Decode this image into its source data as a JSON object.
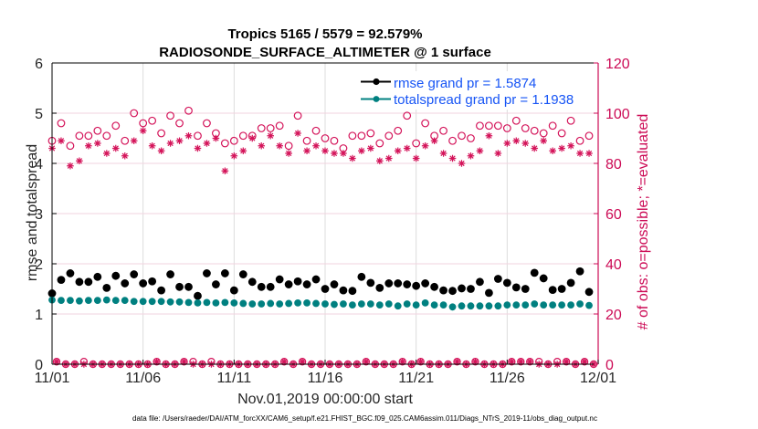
{
  "chart_data": {
    "type": "line",
    "title": "Tropics 5165 / 5579 = 92.579%",
    "subtitle": "RADIOSONDE_SURFACE_ALTIMETER @ 1 surface",
    "xlabel": "Nov.01,2019 00:00:00 start",
    "ylabel": "rmse and totalspread",
    "y2label": "# of obs: o=possible; *=evaluated",
    "xlim_days": [
      0,
      30
    ],
    "ylim": [
      0,
      6
    ],
    "y2lim": [
      0,
      120
    ],
    "grid": true,
    "xticks": [
      {
        "day": 0,
        "label": "11/01"
      },
      {
        "day": 5,
        "label": "11/06"
      },
      {
        "day": 10,
        "label": "11/11"
      },
      {
        "day": 15,
        "label": "11/16"
      },
      {
        "day": 20,
        "label": "11/21"
      },
      {
        "day": 25,
        "label": "11/26"
      },
      {
        "day": 30,
        "label": "12/01"
      }
    ],
    "yticks": [
      0,
      1,
      2,
      3,
      4,
      5,
      6
    ],
    "y2ticks": [
      0,
      20,
      40,
      60,
      80,
      100,
      120
    ],
    "colors": {
      "axis_right": "#cc0a55",
      "counts": "#d4145a",
      "legend_text": "#1654f5",
      "grid_vertical": "#dddddd",
      "grid_horizontal": "#f2d3df"
    },
    "legend": {
      "position": "top-right",
      "entries": [
        {
          "label": "rmse grand pr = 1.5874",
          "color": "#000000"
        },
        {
          "label": "totalspread grand pr = 1.1938",
          "color": "#008080"
        }
      ]
    },
    "x_days": [
      0,
      0.5,
      1,
      1.5,
      2,
      2.5,
      3,
      3.5,
      4,
      4.5,
      5,
      5.5,
      6,
      6.5,
      7,
      7.5,
      8,
      8.5,
      9,
      9.5,
      10,
      10.5,
      11,
      11.5,
      12,
      12.5,
      13,
      13.5,
      14,
      14.5,
      15,
      15.5,
      16,
      16.5,
      17,
      17.5,
      18,
      18.5,
      19,
      19.5,
      20,
      20.5,
      21,
      21.5,
      22,
      22.5,
      23,
      23.5,
      24,
      24.5,
      25,
      25.5,
      26,
      26.5,
      27,
      27.5,
      28,
      28.5,
      29,
      29.5
    ],
    "series": [
      {
        "name": "rmse",
        "axis": "left",
        "marker": "filled-circle",
        "color": "#000000",
        "values": [
          1.41,
          1.68,
          1.81,
          1.64,
          1.64,
          1.74,
          1.52,
          1.76,
          1.61,
          1.79,
          1.61,
          1.65,
          1.47,
          1.79,
          1.54,
          1.54,
          1.36,
          1.81,
          1.59,
          1.81,
          1.47,
          1.79,
          1.64,
          1.54,
          1.54,
          1.69,
          1.59,
          1.65,
          1.59,
          1.69,
          1.5,
          1.59,
          1.47,
          1.46,
          1.74,
          1.62,
          1.52,
          1.61,
          1.61,
          1.59,
          1.56,
          1.61,
          1.54,
          1.47,
          1.46,
          1.51,
          1.5,
          1.64,
          1.42,
          1.7,
          1.62,
          1.53,
          1.5,
          1.82,
          1.71,
          1.48,
          1.5,
          1.62,
          1.85,
          1.44
        ]
      },
      {
        "name": "totalspread",
        "axis": "left",
        "marker": "filled-circle",
        "color": "#008080",
        "values": [
          1.28,
          1.27,
          1.27,
          1.26,
          1.27,
          1.27,
          1.28,
          1.27,
          1.27,
          1.25,
          1.25,
          1.25,
          1.25,
          1.24,
          1.24,
          1.23,
          1.22,
          1.23,
          1.22,
          1.23,
          1.22,
          1.21,
          1.2,
          1.2,
          1.21,
          1.2,
          1.21,
          1.22,
          1.22,
          1.21,
          1.2,
          1.19,
          1.2,
          1.18,
          1.2,
          1.2,
          1.18,
          1.2,
          1.16,
          1.2,
          1.18,
          1.22,
          1.18,
          1.18,
          1.14,
          1.16,
          1.16,
          1.16,
          1.16,
          1.16,
          1.18,
          1.18,
          1.18,
          1.2,
          1.18,
          1.18,
          1.18,
          1.18,
          1.2,
          1.17
        ]
      },
      {
        "name": "obs possible",
        "axis": "right",
        "marker": "open-circle",
        "color": "#d4145a",
        "values": [
          89,
          96,
          87,
          91,
          91,
          93,
          91,
          95,
          89,
          100,
          96,
          97,
          92,
          99,
          96,
          101,
          91,
          96,
          92,
          88,
          89,
          91,
          91,
          94,
          94,
          95,
          87,
          99,
          89,
          93,
          90,
          89,
          86,
          91,
          91,
          92,
          88,
          91,
          93,
          99,
          88,
          96,
          91,
          93,
          89,
          91,
          90,
          95,
          95,
          95,
          94,
          97,
          94,
          93,
          92,
          95,
          92,
          97,
          89,
          91
        ]
      },
      {
        "name": "obs evaluated",
        "axis": "right",
        "marker": "asterisk",
        "color": "#d4145a",
        "values": [
          86,
          89,
          79,
          81,
          87,
          88,
          84,
          86,
          83,
          89,
          93,
          87,
          85,
          88,
          89,
          91,
          86,
          88,
          90,
          77,
          83,
          85,
          90,
          87,
          91,
          87,
          84,
          92,
          85,
          87,
          85,
          84,
          84,
          82,
          85,
          86,
          81,
          82,
          85,
          86,
          82,
          87,
          89,
          84,
          82,
          80,
          83,
          85,
          91,
          84,
          88,
          89,
          88,
          86,
          89,
          85,
          86,
          87,
          84,
          84
        ]
      }
    ],
    "lower_counts": {
      "x_days": [
        0.25,
        0.75,
        1.25,
        1.75,
        2.25,
        2.75,
        3.25,
        3.75,
        4.25,
        4.75,
        5.25,
        5.75,
        6.25,
        6.75,
        7.25,
        7.75,
        8.25,
        8.75,
        9.25,
        9.75,
        10.25,
        10.75,
        11.25,
        11.75,
        12.25,
        12.75,
        13.25,
        13.75,
        14.25,
        14.75,
        15.25,
        15.75,
        16.25,
        16.75,
        17.25,
        17.75,
        18.25,
        18.75,
        19.25,
        19.75,
        20.25,
        20.75,
        21.25,
        21.75,
        22.25,
        22.75,
        23.25,
        23.75,
        24.25,
        24.75,
        25.25,
        25.75,
        26.25,
        26.75,
        27.25,
        27.75,
        28.25,
        28.75,
        29.25,
        29.75
      ],
      "possible": [
        1,
        0,
        0,
        1,
        0,
        0,
        0,
        0,
        0,
        0,
        0,
        1,
        0,
        0,
        1,
        1,
        0,
        1,
        0,
        0,
        0,
        0,
        0,
        0,
        0,
        1,
        0,
        1,
        0,
        0,
        0,
        0,
        0,
        0,
        1,
        0,
        0,
        0,
        1,
        0,
        1,
        0,
        0,
        0,
        1,
        0,
        1,
        0,
        0,
        0,
        1,
        1,
        1,
        1,
        0,
        1,
        1,
        0,
        1,
        0
      ],
      "evaluated": [
        1,
        0,
        0,
        0,
        0,
        0,
        0,
        0,
        0,
        0,
        0,
        1,
        0,
        0,
        1,
        0,
        0,
        0,
        0,
        0,
        0,
        0,
        0,
        0,
        0,
        1,
        0,
        1,
        0,
        0,
        0,
        0,
        0,
        0,
        1,
        0,
        0,
        0,
        1,
        0,
        1,
        0,
        0,
        0,
        1,
        0,
        1,
        0,
        0,
        0,
        1,
        1,
        1,
        0,
        0,
        0,
        1,
        0,
        1,
        0
      ]
    }
  },
  "footer": {
    "data_file": "data file: /Users/raeder/DAI/ATM_forcXX/CAM6_setup/f.e21.FHIST_BGC.f09_025.CAM6assim.011/Diags_NTrS_2019-11/obs_diag_output.nc"
  }
}
